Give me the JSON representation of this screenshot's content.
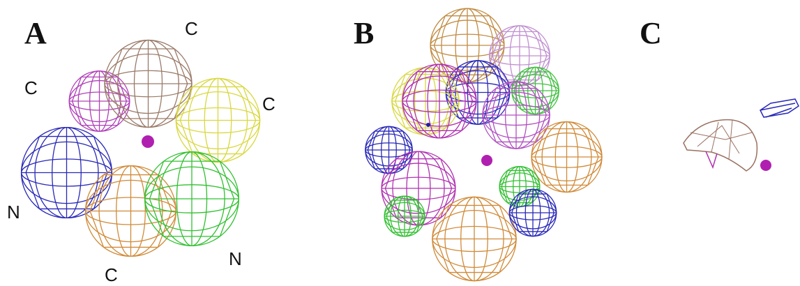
{
  "panels": [
    {
      "label": "A",
      "annotations": [
        "C",
        "C",
        "C",
        "N",
        "C",
        "N"
      ]
    },
    {
      "label": "B"
    },
    {
      "label": "C"
    }
  ]
}
